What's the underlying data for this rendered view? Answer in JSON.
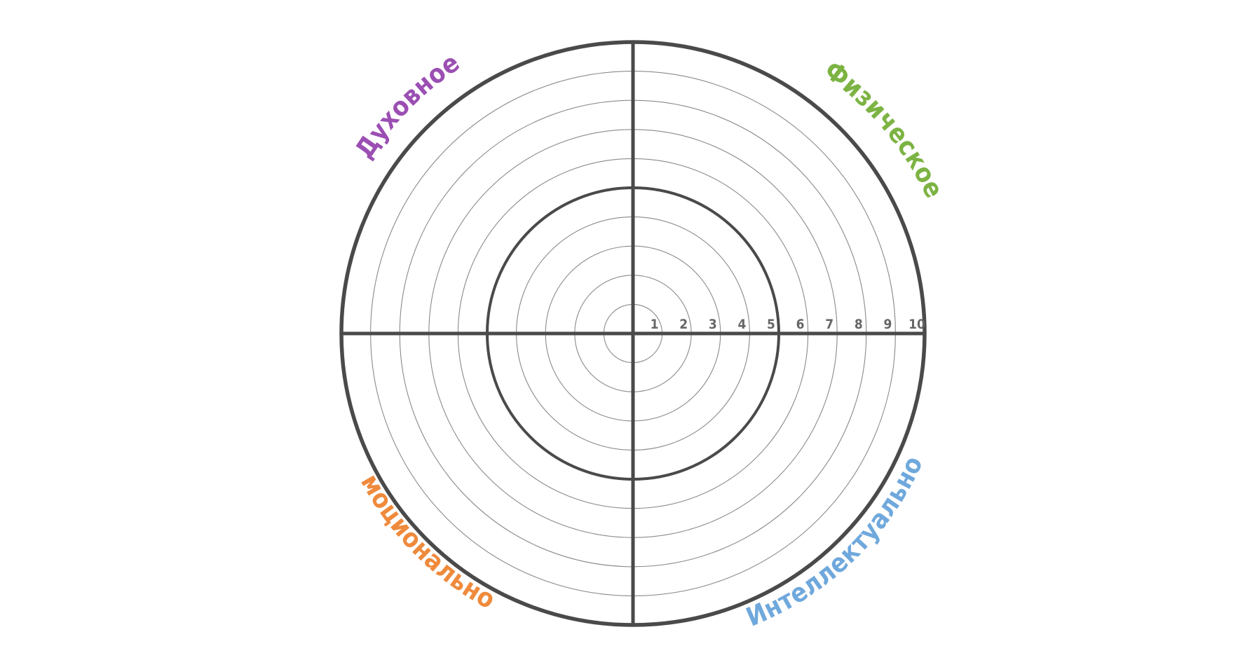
{
  "wheel": {
    "scale": [
      "1",
      "2",
      "3",
      "4",
      "5",
      "6",
      "7",
      "8",
      "9",
      "10"
    ],
    "bold_rings": [
      5,
      10
    ],
    "sectors": [
      {
        "key": "spiritual",
        "label": "Духовное",
        "color": "#9b4fb3",
        "position": "top-left"
      },
      {
        "key": "physical",
        "label": "Физическое",
        "color": "#7cb342",
        "position": "top-right"
      },
      {
        "key": "intellectual",
        "label": "Интеллектуальное",
        "color": "#6fa8dc",
        "position": "bottom-right"
      },
      {
        "key": "emotional",
        "label": "Эмоциональное",
        "color": "#ef8a3c",
        "position": "bottom-left"
      }
    ]
  }
}
